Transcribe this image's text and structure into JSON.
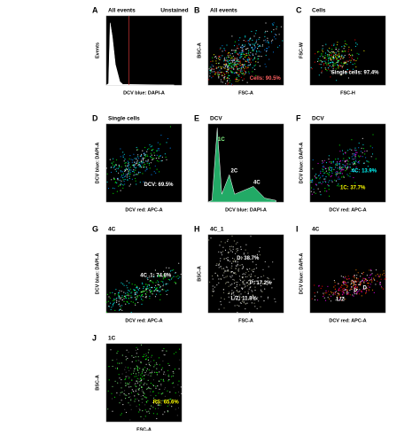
{
  "panels": [
    {
      "letter": "A",
      "title": "All events",
      "note": "Unstained",
      "x_label": "DCV blue: DAPI-A",
      "y_label": "Events",
      "gates": []
    },
    {
      "letter": "B",
      "title": "All events",
      "x_label": "FSC-A",
      "y_label": "BSC-A",
      "gates": [
        "Cells: 90.5%"
      ]
    },
    {
      "letter": "C",
      "title": "Cells",
      "x_label": "FSC-H",
      "y_label": "FSC-W",
      "gates": [
        "Single cells: 97.4%"
      ]
    },
    {
      "letter": "D",
      "title": "Single cells",
      "x_label": "DCV red: APC-A",
      "y_label": "DCV blue: DAPI-A",
      "gates": [
        "DCV: 69.5%"
      ]
    },
    {
      "letter": "E",
      "title": "DCV",
      "x_label": "DCV blue: DAPI-A",
      "gates": [
        "1C",
        "2C",
        "4C"
      ]
    },
    {
      "letter": "F",
      "title": "DCV",
      "x_label": "DCV red: APC-A",
      "y_label": "DCV blue: DAPI-A",
      "gates": [
        "4C: 13.9%",
        "1C: 37.7%"
      ]
    },
    {
      "letter": "G",
      "title": "4C",
      "x_label": "DCV red: APC-A",
      "y_label": "DCV blue: DAPI-A",
      "gates": [
        "4C_1: 74.8%"
      ]
    },
    {
      "letter": "H",
      "title": "4C_1",
      "x_label": "FSC-A",
      "y_label": "BSC-A",
      "gates": [
        "D: 38.7%",
        "P: 17.2%",
        "L/Z: 11.8%"
      ]
    },
    {
      "letter": "I",
      "title": "4C",
      "x_label": "DCV red: APC-A",
      "y_label": "DCV blue: DAPI-A",
      "gates": [
        "L/Z",
        "P",
        "D"
      ]
    },
    {
      "letter": "J",
      "title": "1C",
      "x_label": "FSC-A",
      "y_label": "BSC-A",
      "gates": [
        "RS: 65.6%"
      ]
    }
  ]
}
